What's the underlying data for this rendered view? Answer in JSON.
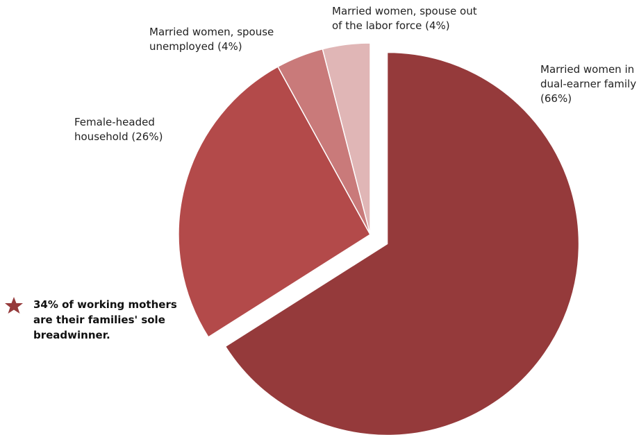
{
  "chart_data": {
    "type": "pie",
    "categories": [
      "Married women in dual-earner family",
      "Female-headed household",
      "Married women, spouse unemployed",
      "Married women, spouse out of the labor force"
    ],
    "values": [
      66,
      26,
      4,
      4
    ],
    "value_labels": [
      "(66%)",
      "(26%)",
      "(4%)",
      "(4%)"
    ],
    "colors": [
      "#953a3b",
      "#b34a4a",
      "#c97a7a",
      "#e0b6b6"
    ],
    "exploded": [
      true,
      false,
      false,
      false
    ],
    "annotation": "34% of working mothers are their families' sole breadwinner."
  }
}
